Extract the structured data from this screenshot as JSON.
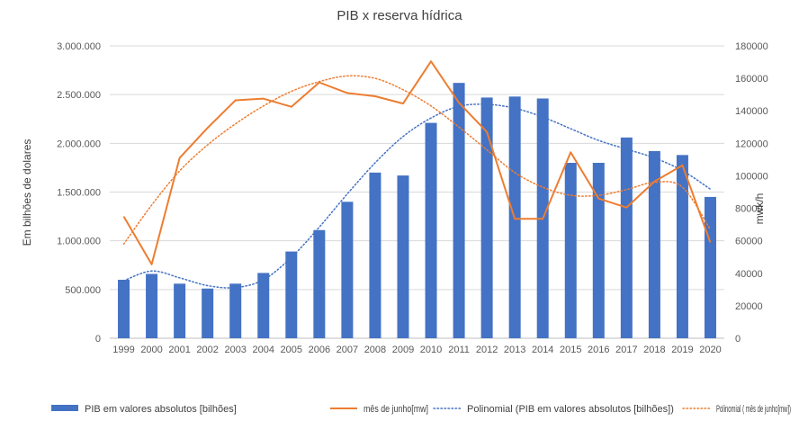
{
  "chart_data": {
    "type": "bar",
    "title": "PIB x reserva hídrica",
    "ylabel": "Em bilhões de dolares",
    "y2label": "mwk/h",
    "xlabel": "",
    "categories": [
      "1999",
      "2000",
      "2001",
      "2002",
      "2003",
      "2004",
      "2005",
      "2006",
      "2007",
      "2008",
      "2009",
      "2010",
      "2011",
      "2012",
      "2013",
      "2014",
      "2015",
      "2016",
      "2017",
      "2018",
      "2019",
      "2020"
    ],
    "ylim": [
      0,
      3000000
    ],
    "y2lim": [
      0,
      180000
    ],
    "yticks": [
      "0",
      "500.000",
      "1.000.000",
      "1.500.000",
      "2.000.000",
      "2.500.000",
      "3.000.000"
    ],
    "y2ticks": [
      "0",
      "20000",
      "40000",
      "60000",
      "80000",
      "100000",
      "120000",
      "140000",
      "160000",
      "180000"
    ],
    "grid": true,
    "legend_position": "bottom",
    "series": [
      {
        "name": "PIB em valores absolutos [bilhões]",
        "kind": "bar",
        "axis": "left",
        "color": "#4472C4",
        "values": [
          600000,
          660000,
          560000,
          510000,
          560000,
          670000,
          890000,
          1110000,
          1400000,
          1700000,
          1670000,
          2210000,
          2620000,
          2470000,
          2480000,
          2460000,
          1800000,
          1800000,
          2060000,
          1920000,
          1880000,
          1450000
        ]
      },
      {
        "name": "mês de junho[mw]",
        "kind": "line",
        "axis": "right",
        "color": "#ED7D31",
        "values": [
          75000,
          45500,
          111000,
          129500,
          146500,
          147500,
          142500,
          157500,
          151000,
          149000,
          144500,
          170500,
          145000,
          127000,
          73500,
          73500,
          114500,
          86000,
          80500,
          96500,
          106500,
          59000
        ]
      },
      {
        "name": "Polinomial (PIB em valores absolutos [bilhões])",
        "kind": "trend",
        "axis": "left",
        "color": "#4472C4",
        "values": [
          590000,
          690000,
          620000,
          540000,
          520000,
          600000,
          830000,
          1140000,
          1480000,
          1800000,
          2070000,
          2260000,
          2380000,
          2400000,
          2360000,
          2270000,
          2150000,
          2030000,
          1940000,
          1850000,
          1720000,
          1530000
        ]
      },
      {
        "name": "Polinomial ( mês de junho[mw])",
        "kind": "trend",
        "axis": "right",
        "color": "#ED7D31",
        "values": [
          58000,
          82000,
          103000,
          119000,
          132000,
          143000,
          152000,
          158000,
          161500,
          160000,
          153000,
          143000,
          130000,
          116000,
          102000,
          93000,
          88000,
          88000,
          91500,
          96000,
          93000,
          67000
        ]
      }
    ]
  }
}
